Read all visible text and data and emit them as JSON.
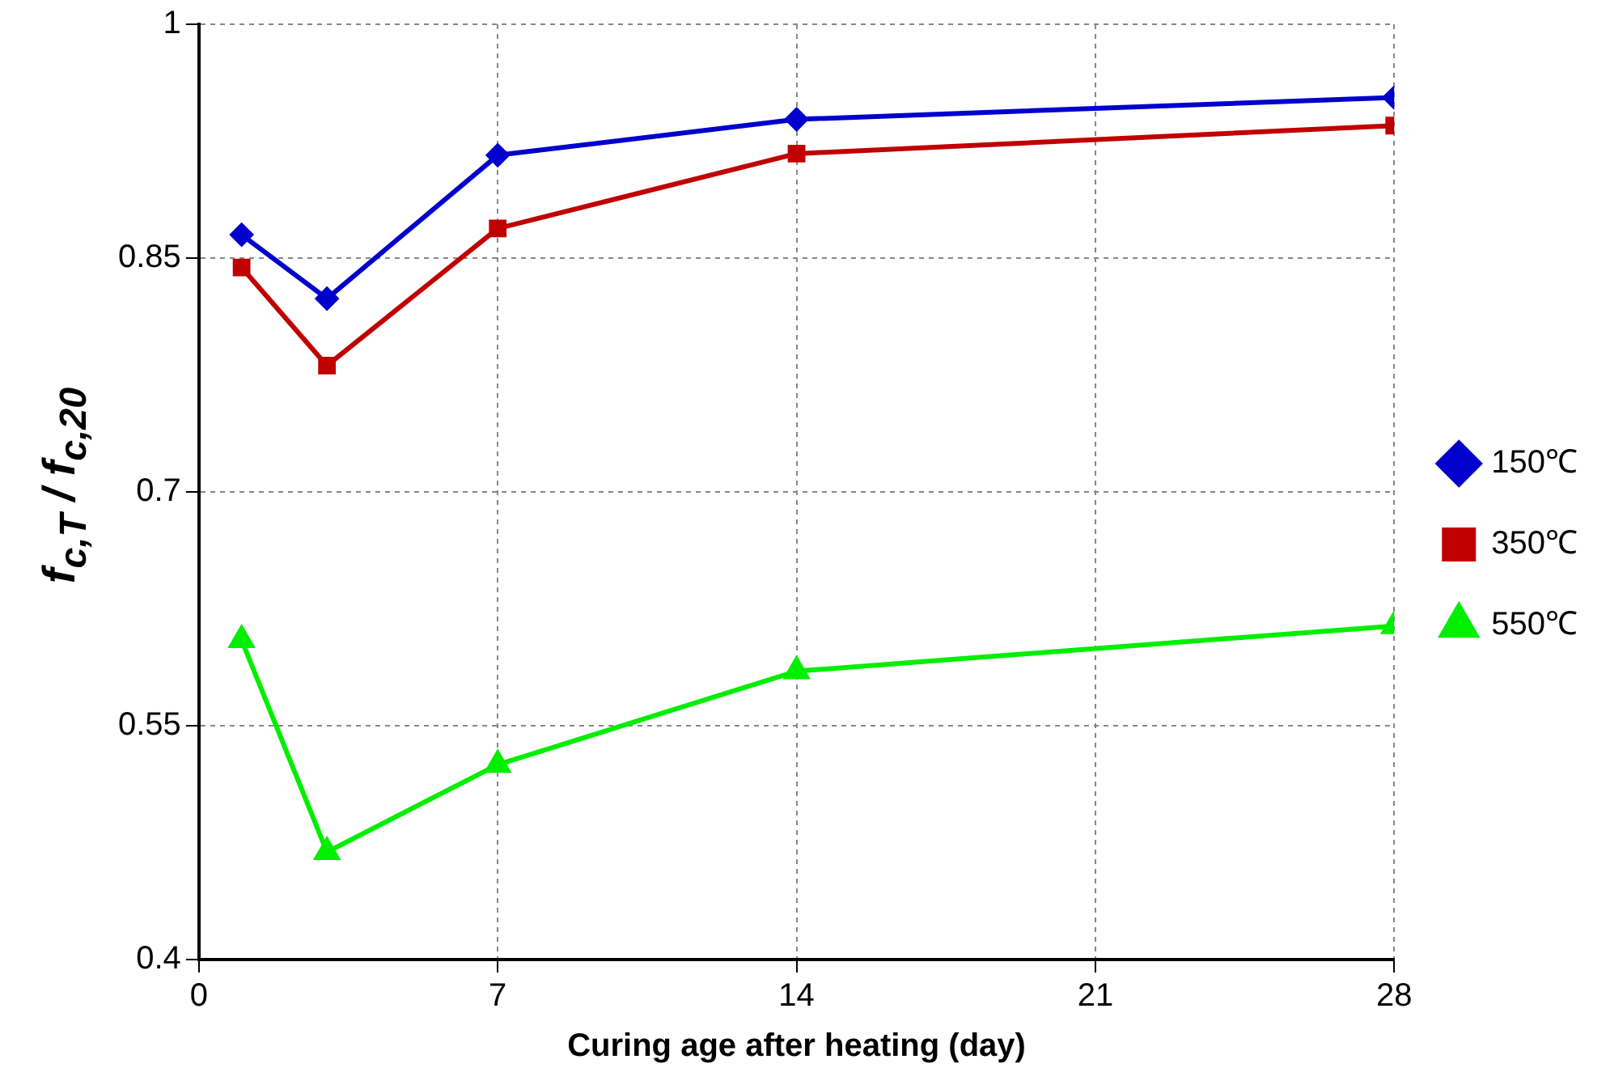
{
  "chart_data": {
    "type": "line",
    "xlabel": "Curing age after heating (day)",
    "ylabel": "f$_{c,T}$ / f$_{c,20}$",
    "x": [
      1,
      3,
      7,
      14,
      28
    ],
    "series": [
      {
        "name": "150℃",
        "color": "#0000cc",
        "marker": "diamond",
        "values": [
          0.865,
          0.824,
          0.916,
          0.939,
          0.953
        ]
      },
      {
        "name": "350℃",
        "color": "#c00000",
        "marker": "square",
        "values": [
          0.844,
          0.781,
          0.869,
          0.917,
          0.935
        ]
      },
      {
        "name": "550℃",
        "color": "#00ee00",
        "marker": "triangle",
        "values": [
          0.605,
          0.469,
          0.525,
          0.585,
          0.614
        ]
      }
    ],
    "xlim": [
      0,
      28
    ],
    "xticks": [
      0,
      7,
      14,
      21,
      28
    ],
    "ylim": [
      0.4,
      1
    ],
    "yticks": [
      0.4,
      0.55,
      0.7,
      0.85,
      1
    ],
    "grid": true,
    "legend": "right",
    "line_style": "solid"
  }
}
